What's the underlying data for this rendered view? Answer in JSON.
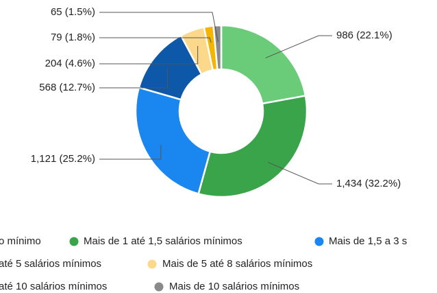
{
  "chart_data": {
    "type": "pie",
    "donut": true,
    "categories": [
      "o mínimo",
      "Mais de 1 até 1,5 salários mínimos",
      "Mais de 1,5 a 3 s",
      "até 5 salários mínimos",
      "Mais de 5 até 8 salários mínimos",
      "até 10 salários mínimos",
      "Mais de 10 salários mínimos"
    ],
    "values": [
      986,
      1434,
      1121,
      568,
      204,
      79,
      65
    ],
    "value_labels": [
      "986 (22.1%)",
      "1,434 (32.2%)",
      "1,121 (25.2%)",
      "568 (12.7%)",
      "204 (4.6%)",
      "79 (1.8%)",
      "65 (1.5%)"
    ],
    "colors": [
      "#6acb78",
      "#3aa44b",
      "#1a86f0",
      "#0d58a8",
      "#fcd98a",
      "#f5b400",
      "#8a8a8a"
    ]
  }
}
